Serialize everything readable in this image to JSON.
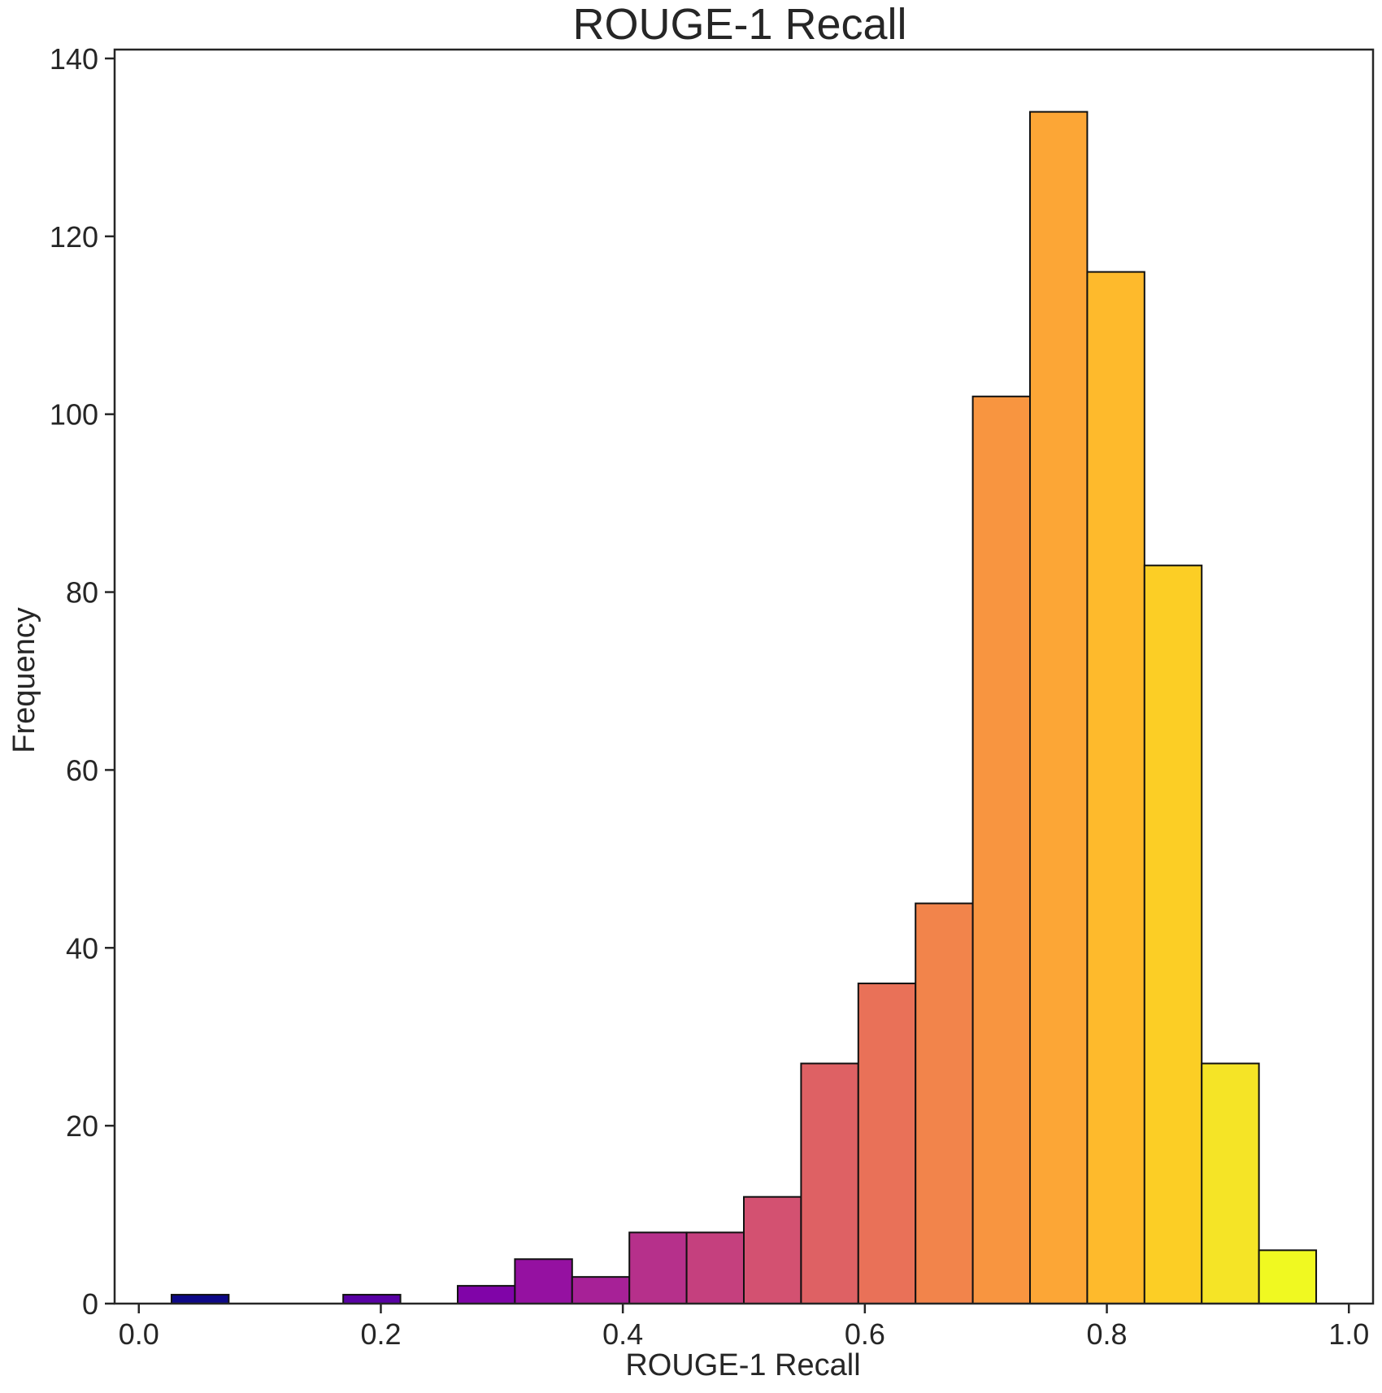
{
  "chart_data": {
    "type": "bar",
    "title": "ROUGE-1 Recall",
    "xlabel": "ROUGE-1 Recall",
    "ylabel": "Frequency",
    "xlim": [
      -0.02,
      1.02
    ],
    "ylim": [
      0,
      141
    ],
    "grid": false,
    "colormap": "plasma",
    "bin_edges": [
      0.027,
      0.0743,
      0.1216,
      0.1689,
      0.2162,
      0.2635,
      0.3108,
      0.3581,
      0.4054,
      0.4527,
      0.5,
      0.5473,
      0.5946,
      0.6419,
      0.6892,
      0.7365,
      0.7838,
      0.8311,
      0.8784,
      0.9257,
      0.973
    ],
    "values": [
      1,
      0,
      0,
      1,
      0,
      2,
      5,
      3,
      8,
      8,
      12,
      27,
      36,
      45,
      102,
      134,
      116,
      83,
      27,
      6
    ],
    "colors": [
      "#0d0887",
      "#2c0594",
      "#43039e",
      "#5901a5",
      "#6e00a8",
      "#8004a8",
      "#9511a1",
      "#a72197",
      "#b6308b",
      "#c5407e",
      "#d35171",
      "#de6164",
      "#e97158",
      "#f2844b",
      "#f89540",
      "#fca636",
      "#feba2c",
      "#fcce25",
      "#f5e426",
      "#f0f921"
    ],
    "x_ticks": [
      "0.0",
      "0.2",
      "0.4",
      "0.6",
      "0.8",
      "1.0"
    ],
    "x_tick_values": [
      0.0,
      0.2,
      0.4,
      0.6,
      0.8,
      1.0
    ],
    "y_ticks": [
      "0",
      "20",
      "40",
      "60",
      "80",
      "100",
      "120",
      "140"
    ],
    "y_tick_values": [
      0,
      20,
      40,
      60,
      80,
      100,
      120,
      140
    ]
  }
}
